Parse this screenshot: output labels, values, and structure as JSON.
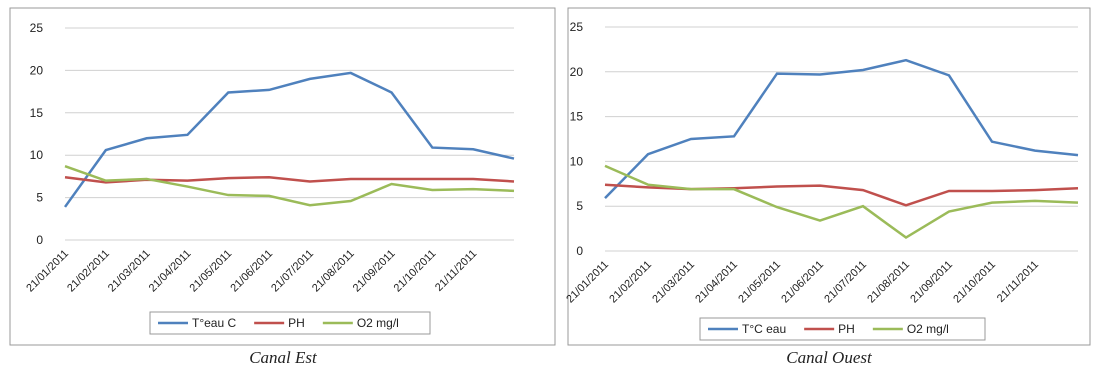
{
  "chart_data": [
    {
      "type": "line",
      "caption": "Canal Est",
      "categories": [
        "21/01/2011",
        "21/02/2011",
        "21/03/2011",
        "21/04/2011",
        "21/05/2011",
        "21/06/2011",
        "21/07/2011",
        "21/08/2011",
        "21/09/2011",
        "21/10/2011",
        "21/11/2011",
        null
      ],
      "series": [
        {
          "name": "T°eau C",
          "color": "#4f81bd",
          "values": [
            3.9,
            10.6,
            12,
            12.4,
            17.4,
            17.7,
            19,
            19.7,
            17.4,
            10.9,
            10.7,
            9.6
          ]
        },
        {
          "name": "PH",
          "color": "#c0504d",
          "values": [
            7.4,
            6.8,
            7.1,
            7.0,
            7.3,
            7.4,
            6.9,
            7.2,
            7.2,
            7.2,
            7.2,
            6.9
          ]
        },
        {
          "name": "O2 mg/l",
          "color": "#9bbb59",
          "values": [
            8.7,
            7.0,
            7.2,
            6.3,
            5.3,
            5.2,
            4.1,
            4.6,
            6.6,
            5.9,
            6.0,
            5.8
          ]
        }
      ],
      "ylim": [
        0,
        25
      ],
      "yticks": [
        0,
        5,
        10,
        15,
        20,
        25
      ],
      "grid": true,
      "legend": "bottom"
    },
    {
      "type": "line",
      "caption": "Canal Ouest",
      "categories": [
        "21/01/2011",
        "21/02/2011",
        "21/03/2011",
        "21/04/2011",
        "21/05/2011",
        "21/06/2011",
        "21/07/2011",
        "21/08/2011",
        "21/09/2011",
        "21/10/2011",
        "21/11/2011",
        null
      ],
      "series": [
        {
          "name": "T°C eau",
          "color": "#4f81bd",
          "values": [
            5.9,
            10.8,
            12.5,
            12.8,
            19.8,
            19.7,
            20.2,
            21.3,
            19.6,
            12.2,
            11.2,
            10.7
          ]
        },
        {
          "name": "PH",
          "color": "#c0504d",
          "values": [
            7.4,
            7.1,
            6.9,
            7.0,
            7.2,
            7.3,
            6.8,
            5.1,
            6.7,
            6.7,
            6.8,
            7.0
          ]
        },
        {
          "name": "O2 mg/l",
          "color": "#9bbb59",
          "values": [
            9.5,
            7.4,
            6.9,
            6.9,
            4.9,
            3.4,
            5.0,
            1.5,
            4.4,
            5.4,
            5.6,
            5.4
          ]
        }
      ],
      "ylim": [
        0,
        25
      ],
      "yticks": [
        0,
        5,
        10,
        15,
        20,
        25
      ],
      "grid": true,
      "legend": "bottom"
    }
  ]
}
